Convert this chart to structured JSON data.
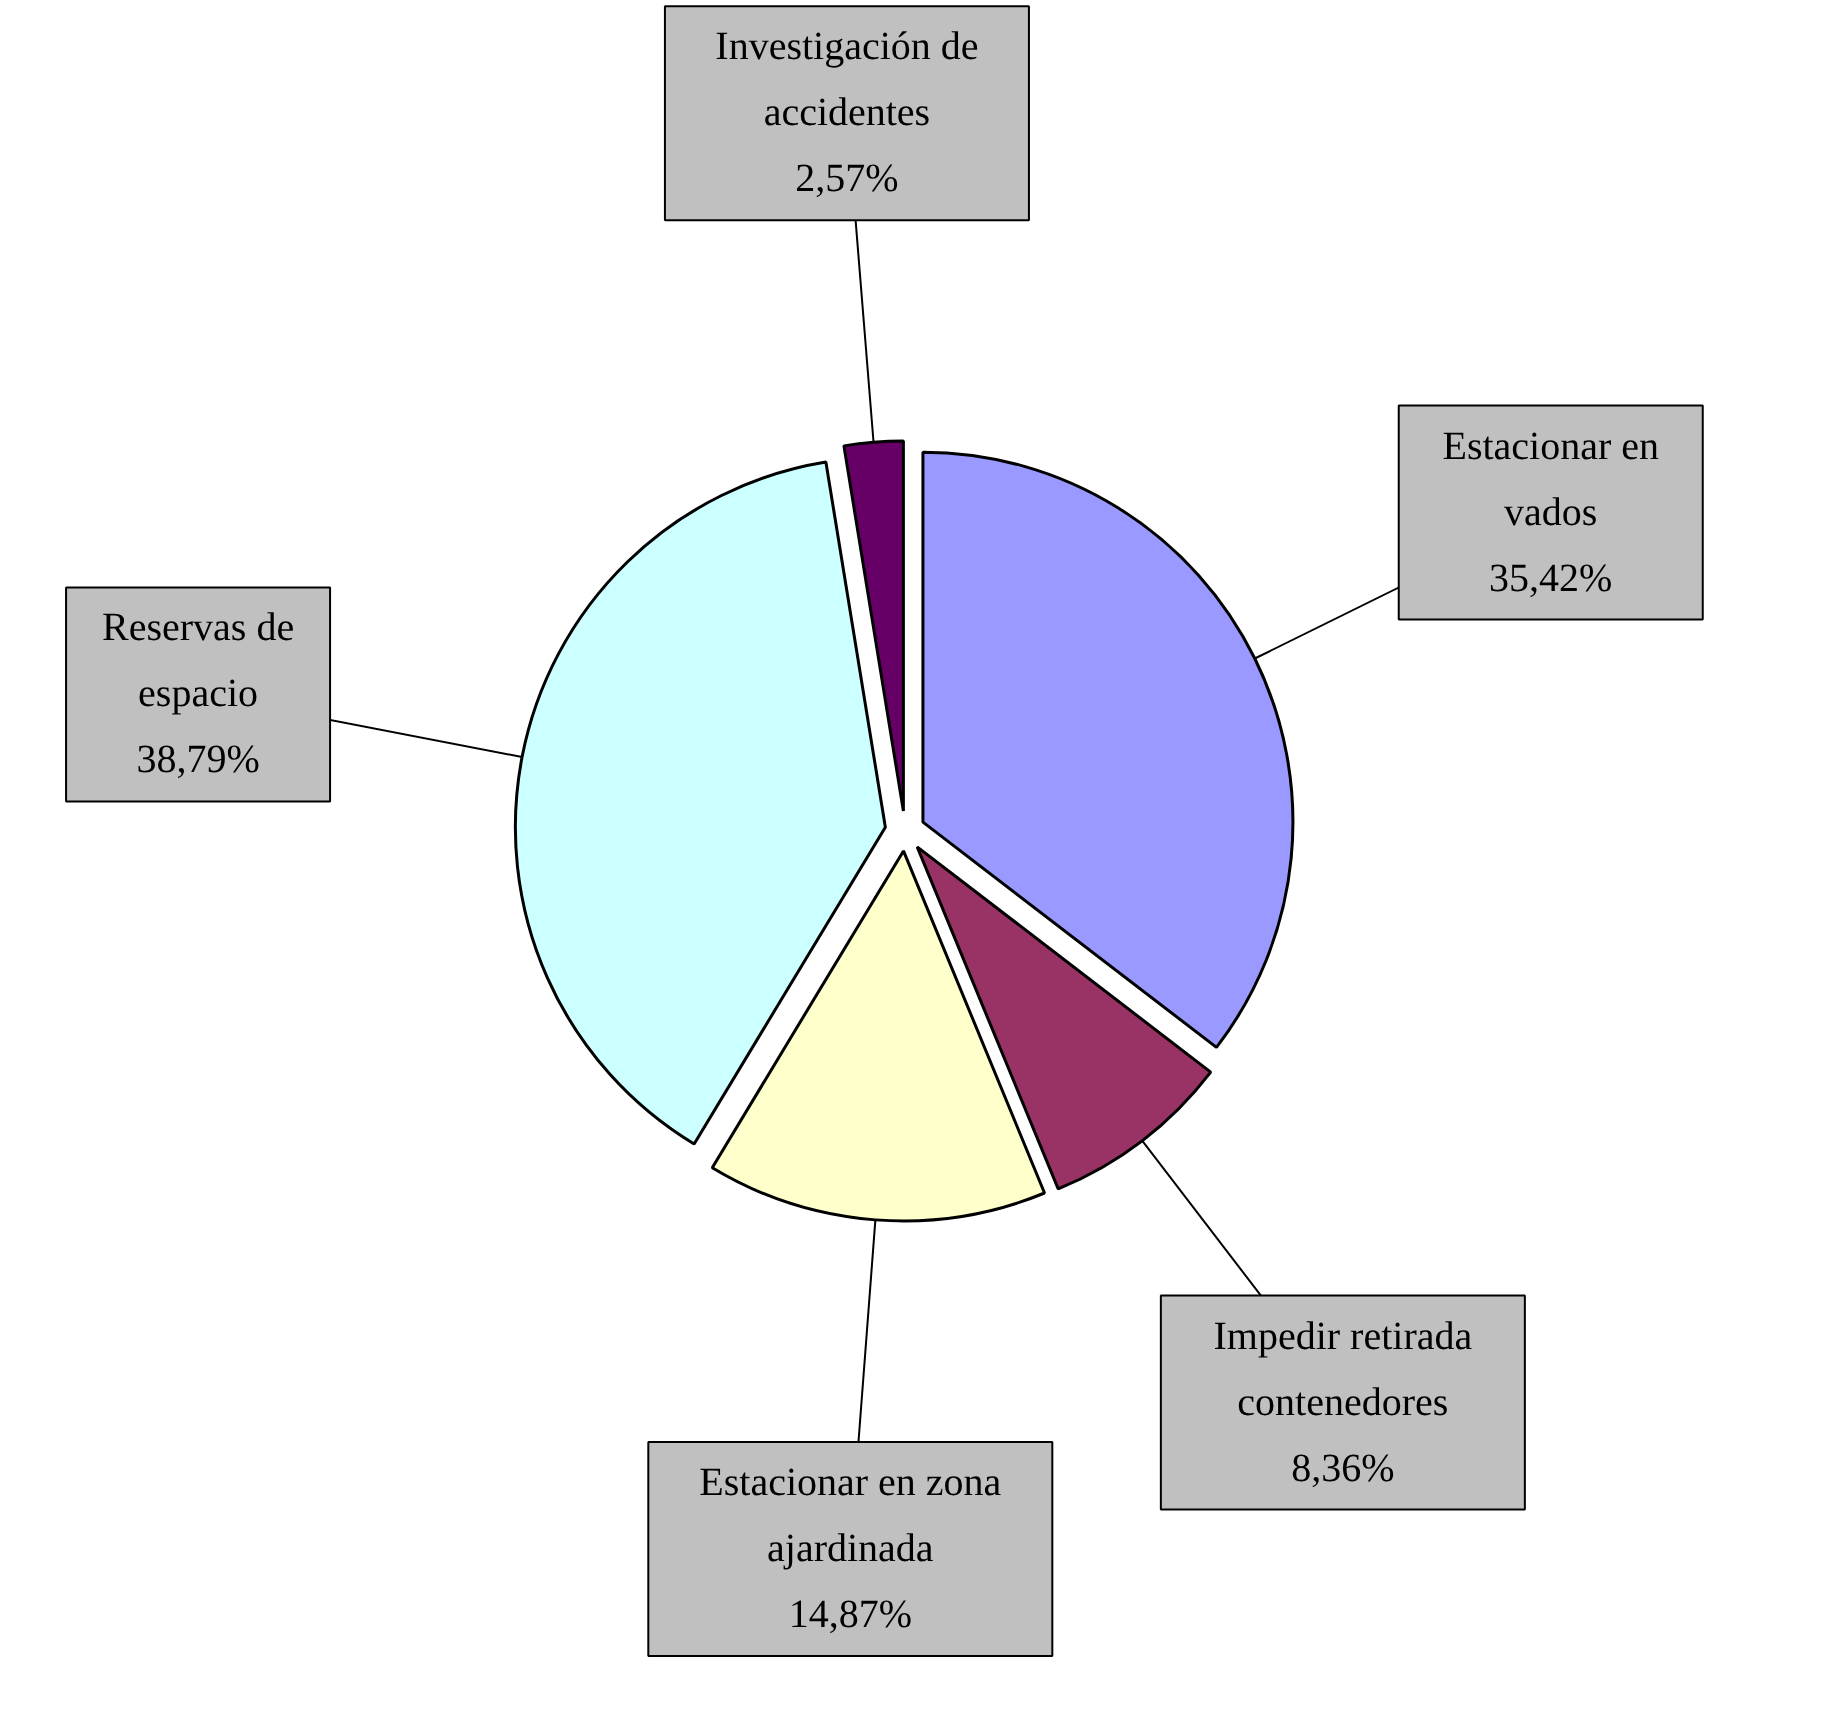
{
  "chart_data": {
    "type": "pie",
    "categories": [
      "Estacionar en vados",
      "Impedir retirada contenedores",
      "Estacionar en zona ajardinada",
      "Reservas de espacio",
      "Investigación de accidentes"
    ],
    "values": [
      35.42,
      8.36,
      14.87,
      38.79,
      2.57
    ],
    "colors": [
      "#9999ff",
      "#993366",
      "#ffffcc",
      "#ccffff",
      "#660066"
    ],
    "value_labels": [
      "35,42%",
      "8,36%",
      "14,87%",
      "38,79%",
      "2,57%"
    ]
  }
}
